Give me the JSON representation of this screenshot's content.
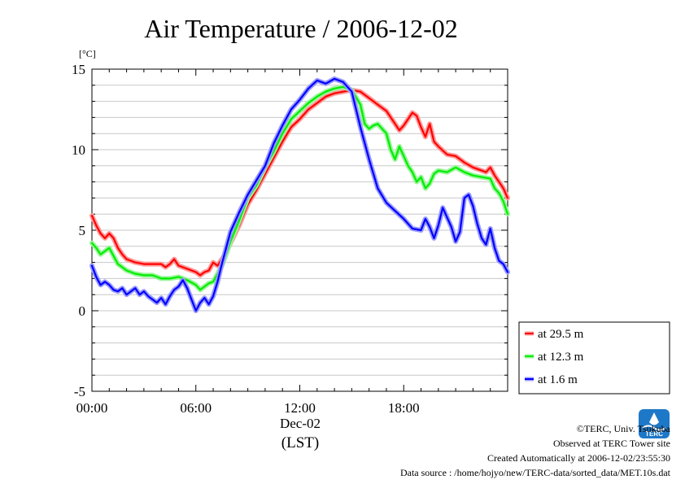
{
  "chart_data": {
    "type": "line",
    "title": "Air Temperature / 2006-12-02",
    "ylabel": "[°C]",
    "xlabel": "(LST)",
    "xlabel_date": "Dec-02",
    "xlim": [
      0,
      24
    ],
    "ylim": [
      -5,
      15
    ],
    "x_ticks": [
      {
        "value": 0,
        "label": "00:00"
      },
      {
        "value": 6,
        "label": "06:00"
      },
      {
        "value": 12,
        "label": "12:00"
      },
      {
        "value": 18,
        "label": "18:00"
      }
    ],
    "y_ticks": [
      {
        "value": -5,
        "label": "-5"
      },
      {
        "value": 0,
        "label": "0"
      },
      {
        "value": 5,
        "label": "5"
      },
      {
        "value": 10,
        "label": "10"
      },
      {
        "value": 15,
        "label": "15"
      }
    ],
    "grid": "horizontal",
    "legend_position": "bottom-right, outside plot",
    "series": [
      {
        "name": "at 29.5 m",
        "color": "#ff0000",
        "points": [
          [
            0,
            5.9
          ],
          [
            0.25,
            5.3
          ],
          [
            0.5,
            4.8
          ],
          [
            0.75,
            4.5
          ],
          [
            1,
            4.8
          ],
          [
            1.25,
            4.5
          ],
          [
            1.5,
            3.9
          ],
          [
            1.75,
            3.5
          ],
          [
            2,
            3.2
          ],
          [
            2.5,
            3.0
          ],
          [
            3,
            2.9
          ],
          [
            3.5,
            2.9
          ],
          [
            4,
            2.9
          ],
          [
            4.25,
            2.7
          ],
          [
            4.5,
            2.9
          ],
          [
            4.75,
            3.2
          ],
          [
            5,
            2.8
          ],
          [
            5.5,
            2.6
          ],
          [
            6,
            2.4
          ],
          [
            6.25,
            2.2
          ],
          [
            6.5,
            2.4
          ],
          [
            6.75,
            2.5
          ],
          [
            7,
            3.0
          ],
          [
            7.25,
            2.8
          ],
          [
            7.5,
            3.2
          ],
          [
            7.75,
            3.6
          ],
          [
            8,
            4.2
          ],
          [
            8.5,
            5.3
          ],
          [
            9,
            6.6
          ],
          [
            9.5,
            7.5
          ],
          [
            10,
            8.5
          ],
          [
            10.5,
            9.5
          ],
          [
            11,
            10.5
          ],
          [
            11.5,
            11.4
          ],
          [
            12,
            11.9
          ],
          [
            12.5,
            12.5
          ],
          [
            13,
            12.9
          ],
          [
            13.5,
            13.3
          ],
          [
            14,
            13.5
          ],
          [
            14.5,
            13.6
          ],
          [
            15,
            13.7
          ],
          [
            15.5,
            13.6
          ],
          [
            16,
            13.2
          ],
          [
            16.5,
            12.8
          ],
          [
            17,
            12.4
          ],
          [
            17.25,
            12.0
          ],
          [
            17.5,
            11.6
          ],
          [
            17.75,
            11.2
          ],
          [
            18,
            11.5
          ],
          [
            18.25,
            11.9
          ],
          [
            18.5,
            12.3
          ],
          [
            18.75,
            12.1
          ],
          [
            19,
            11.4
          ],
          [
            19.25,
            10.8
          ],
          [
            19.5,
            11.6
          ],
          [
            19.75,
            10.5
          ],
          [
            20,
            10.2
          ],
          [
            20.5,
            9.7
          ],
          [
            21,
            9.6
          ],
          [
            21.5,
            9.2
          ],
          [
            22,
            8.9
          ],
          [
            22.5,
            8.7
          ],
          [
            22.75,
            8.6
          ],
          [
            23,
            8.9
          ],
          [
            23.25,
            8.4
          ],
          [
            23.5,
            8.0
          ],
          [
            23.75,
            7.6
          ],
          [
            24,
            7.0
          ]
        ]
      },
      {
        "name": "at 12.3 m",
        "color": "#00ee00",
        "points": [
          [
            0,
            4.2
          ],
          [
            0.25,
            3.9
          ],
          [
            0.5,
            3.5
          ],
          [
            0.75,
            3.7
          ],
          [
            1,
            3.9
          ],
          [
            1.25,
            3.4
          ],
          [
            1.5,
            2.9
          ],
          [
            1.75,
            2.7
          ],
          [
            2,
            2.5
          ],
          [
            2.5,
            2.3
          ],
          [
            3,
            2.2
          ],
          [
            3.5,
            2.2
          ],
          [
            4,
            2.0
          ],
          [
            4.5,
            2.0
          ],
          [
            5,
            2.1
          ],
          [
            5.5,
            1.9
          ],
          [
            6,
            1.6
          ],
          [
            6.25,
            1.3
          ],
          [
            6.5,
            1.5
          ],
          [
            6.75,
            1.7
          ],
          [
            7,
            1.8
          ],
          [
            7.25,
            2.3
          ],
          [
            7.5,
            2.8
          ],
          [
            7.75,
            3.5
          ],
          [
            8,
            4.3
          ],
          [
            8.5,
            5.6
          ],
          [
            9,
            7.0
          ],
          [
            9.5,
            7.8
          ],
          [
            10,
            8.9
          ],
          [
            10.5,
            9.9
          ],
          [
            11,
            11.0
          ],
          [
            11.5,
            11.9
          ],
          [
            12,
            12.4
          ],
          [
            12.5,
            12.9
          ],
          [
            13,
            13.3
          ],
          [
            13.5,
            13.6
          ],
          [
            14,
            13.8
          ],
          [
            14.5,
            13.9
          ],
          [
            15,
            13.7
          ],
          [
            15.5,
            12.8
          ],
          [
            15.75,
            11.6
          ],
          [
            16,
            11.3
          ],
          [
            16.25,
            11.5
          ],
          [
            16.5,
            11.6
          ],
          [
            17,
            11.0
          ],
          [
            17.25,
            10.0
          ],
          [
            17.5,
            9.4
          ],
          [
            17.75,
            10.2
          ],
          [
            18,
            9.6
          ],
          [
            18.25,
            9.0
          ],
          [
            18.5,
            8.6
          ],
          [
            18.75,
            8.0
          ],
          [
            19,
            8.3
          ],
          [
            19.25,
            7.6
          ],
          [
            19.5,
            7.9
          ],
          [
            19.75,
            8.5
          ],
          [
            20,
            8.7
          ],
          [
            20.5,
            8.6
          ],
          [
            21,
            8.9
          ],
          [
            21.5,
            8.6
          ],
          [
            22,
            8.4
          ],
          [
            22.5,
            8.3
          ],
          [
            23,
            8.2
          ],
          [
            23.25,
            7.6
          ],
          [
            23.5,
            7.3
          ],
          [
            23.75,
            6.8
          ],
          [
            24,
            6.0
          ]
        ]
      },
      {
        "name": "at 1.6 m",
        "color": "#0000ff",
        "points": [
          [
            0,
            2.8
          ],
          [
            0.25,
            2.1
          ],
          [
            0.5,
            1.6
          ],
          [
            0.75,
            1.8
          ],
          [
            1,
            1.6
          ],
          [
            1.25,
            1.3
          ],
          [
            1.5,
            1.2
          ],
          [
            1.75,
            1.4
          ],
          [
            2,
            1.0
          ],
          [
            2.25,
            1.2
          ],
          [
            2.5,
            1.4
          ],
          [
            2.75,
            1.0
          ],
          [
            3,
            1.2
          ],
          [
            3.25,
            0.9
          ],
          [
            3.5,
            0.7
          ],
          [
            3.75,
            0.5
          ],
          [
            4,
            0.8
          ],
          [
            4.25,
            0.4
          ],
          [
            4.5,
            0.9
          ],
          [
            4.75,
            1.3
          ],
          [
            5,
            1.5
          ],
          [
            5.25,
            1.9
          ],
          [
            5.5,
            1.4
          ],
          [
            5.75,
            0.7
          ],
          [
            6,
            0.0
          ],
          [
            6.25,
            0.5
          ],
          [
            6.5,
            0.8
          ],
          [
            6.75,
            0.4
          ],
          [
            7,
            0.9
          ],
          [
            7.25,
            1.8
          ],
          [
            7.5,
            2.9
          ],
          [
            7.75,
            3.9
          ],
          [
            8,
            4.9
          ],
          [
            8.5,
            6.1
          ],
          [
            9,
            7.2
          ],
          [
            9.5,
            8.1
          ],
          [
            10,
            9.0
          ],
          [
            10.5,
            10.4
          ],
          [
            11,
            11.5
          ],
          [
            11.5,
            12.5
          ],
          [
            12,
            13.1
          ],
          [
            12.5,
            13.8
          ],
          [
            13,
            14.3
          ],
          [
            13.5,
            14.1
          ],
          [
            14,
            14.4
          ],
          [
            14.5,
            14.2
          ],
          [
            15,
            13.6
          ],
          [
            15.5,
            11.4
          ],
          [
            16,
            9.4
          ],
          [
            16.5,
            7.6
          ],
          [
            17,
            6.7
          ],
          [
            17.5,
            6.2
          ],
          [
            18,
            5.7
          ],
          [
            18.5,
            5.1
          ],
          [
            19,
            5.0
          ],
          [
            19.25,
            5.7
          ],
          [
            19.5,
            5.2
          ],
          [
            19.75,
            4.5
          ],
          [
            20,
            5.3
          ],
          [
            20.25,
            6.4
          ],
          [
            20.5,
            5.8
          ],
          [
            20.75,
            5.2
          ],
          [
            21,
            4.3
          ],
          [
            21.25,
            4.9
          ],
          [
            21.5,
            7.0
          ],
          [
            21.75,
            7.2
          ],
          [
            22,
            6.5
          ],
          [
            22.25,
            5.4
          ],
          [
            22.5,
            4.5
          ],
          [
            22.75,
            4.1
          ],
          [
            23,
            5.1
          ],
          [
            23.25,
            3.9
          ],
          [
            23.5,
            3.1
          ],
          [
            23.75,
            2.9
          ],
          [
            24,
            2.4
          ]
        ]
      }
    ]
  },
  "footer": {
    "copyright": "©TERC, Univ. Tsukuba",
    "site": "Observed at TERC Tower site",
    "created": "Created Automatically at 2006-12-02/23:55:30",
    "source": "Data source : /home/hojyo/new/TERC-data/sorted_data/MET.10s.dat"
  },
  "logo": {
    "text": "TERC",
    "color": "#1e78c8"
  }
}
